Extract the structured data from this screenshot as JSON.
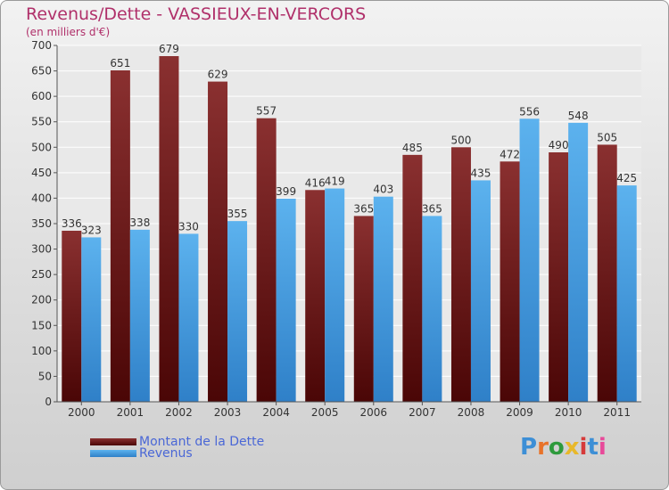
{
  "header": {
    "title": "Revenus/Dette - VASSIEUX-EN-VERCORS",
    "subtitle": "(en milliers d'€)"
  },
  "legend": {
    "items": [
      {
        "label": "Montant de la Dette",
        "color": "#6b1a1a"
      },
      {
        "label": "Revenus",
        "color": "#4aa3e6"
      }
    ]
  },
  "logo": {
    "text": "Proxiti",
    "colors": [
      "#3d8fd6",
      "#e8732a",
      "#2e9a3c",
      "#e8b82a",
      "#d63a3a",
      "#3d8fd6",
      "#e84a9a"
    ]
  },
  "chart_data": {
    "type": "bar",
    "title": "Revenus/Dette - VASSIEUX-EN-VERCORS",
    "subtitle": "(en milliers d'€)",
    "categories": [
      "2000",
      "2001",
      "2002",
      "2003",
      "2004",
      "2005",
      "2006",
      "2007",
      "2008",
      "2009",
      "2010",
      "2011"
    ],
    "series": [
      {
        "name": "Montant de la Dette",
        "color": "#6b1a1a",
        "values": [
          336,
          651,
          679,
          629,
          557,
          416,
          365,
          485,
          500,
          472,
          490,
          505
        ]
      },
      {
        "name": "Revenus",
        "color": "#4aa3e6",
        "values": [
          323,
          338,
          330,
          355,
          399,
          419,
          403,
          365,
          435,
          556,
          548,
          425
        ]
      }
    ],
    "ylim": [
      0,
      700
    ],
    "yticks": [
      0,
      50,
      100,
      150,
      200,
      250,
      300,
      350,
      400,
      450,
      500,
      550,
      600,
      650,
      700
    ],
    "grid": true,
    "legend_position": "bottom-left"
  }
}
